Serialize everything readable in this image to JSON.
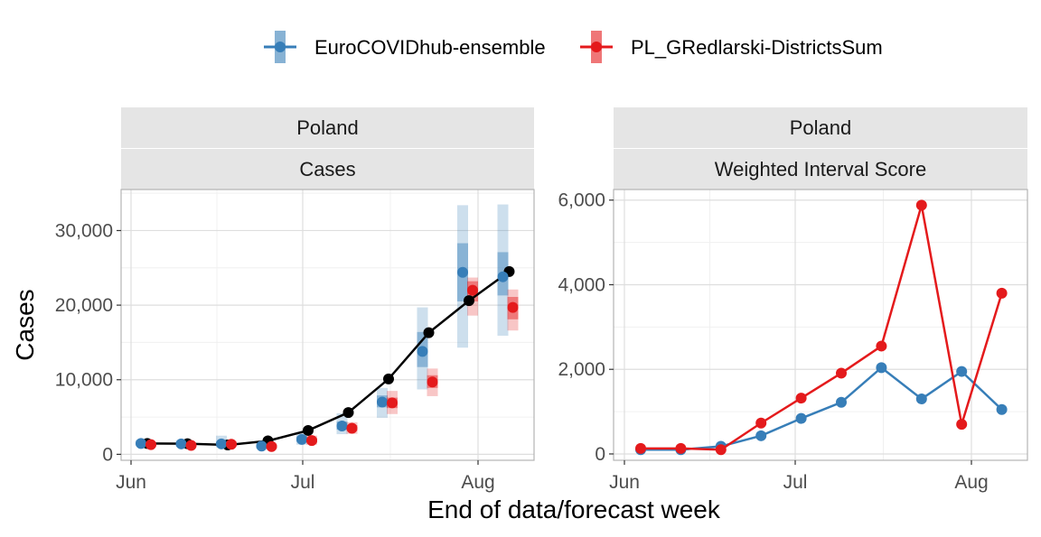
{
  "chart_data": [
    {
      "type": "line",
      "strip_top": "Poland",
      "strip_bottom": "Cases",
      "ylabel": "Cases",
      "xlabel": "End of data/forecast week",
      "x_ticks": [
        "Jun",
        "Jul",
        "Aug"
      ],
      "y_ticks": [
        "0",
        "10,000",
        "20,000",
        "30,000"
      ],
      "y_tick_values": [
        0,
        10000,
        20000,
        30000
      ],
      "ylim": [
        -800,
        35500
      ],
      "grid": true,
      "observed": {
        "color": "#000000",
        "values": [
          1450,
          1420,
          1250,
          1800,
          3200,
          5600,
          10100,
          16300,
          20600,
          24500
        ]
      },
      "forecasts": [
        {
          "model": "EuroCOVIDhub-ensemble",
          "color": "#377eb8",
          "points": [
            {
              "median": 1450,
              "inner": [
                1300,
                1650
              ],
              "outer": [
                1100,
                1900
              ]
            },
            {
              "median": 1400,
              "inner": [
                1250,
                1600
              ],
              "outer": [
                1050,
                1850
              ]
            },
            {
              "median": 1400,
              "inner": [
                1200,
                1700
              ],
              "outer": [
                950,
                2500
              ]
            },
            {
              "median": 1100,
              "inner": [
                950,
                1300
              ],
              "outer": [
                800,
                1600
              ]
            },
            {
              "median": 2000,
              "inner": [
                1700,
                2400
              ],
              "outer": [
                1300,
                3000
              ]
            },
            {
              "median": 3800,
              "inner": [
                3300,
                4400
              ],
              "outer": [
                2700,
                5500
              ]
            },
            {
              "median": 7000,
              "inner": [
                6300,
                7900
              ],
              "outer": [
                4900,
                8900
              ]
            },
            {
              "median": 13800,
              "inner": [
                11700,
                16400
              ],
              "outer": [
                8700,
                19700
              ]
            },
            {
              "median": 24400,
              "inner": [
                20500,
                28300
              ],
              "outer": [
                14300,
                33400
              ]
            },
            {
              "median": 23800,
              "inner": [
                21300,
                27100
              ],
              "outer": [
                15900,
                33500
              ]
            }
          ]
        },
        {
          "model": "PL_GRedlarski-DistrictsSum",
          "color": "#e41a1c",
          "points": [
            {
              "median": 1300,
              "inner": [
                1200,
                1450
              ],
              "outer": [
                1050,
                1650
              ]
            },
            {
              "median": 1200,
              "inner": [
                1100,
                1350
              ],
              "outer": [
                950,
                1550
              ]
            },
            {
              "median": 1350,
              "inner": [
                1200,
                1500
              ],
              "outer": [
                1050,
                1750
              ]
            },
            {
              "median": 1050,
              "inner": [
                900,
                1250
              ],
              "outer": [
                750,
                1450
              ]
            },
            {
              "median": 1850,
              "inner": [
                1600,
                2150
              ],
              "outer": [
                1300,
                2500
              ]
            },
            {
              "median": 3500,
              "inner": [
                3150,
                3900
              ],
              "outer": [
                2750,
                4300
              ]
            },
            {
              "median": 6900,
              "inner": [
                6200,
                7600
              ],
              "outer": [
                5400,
                8500
              ]
            },
            {
              "median": 9700,
              "inner": [
                8900,
                10600
              ],
              "outer": [
                7800,
                11500
              ]
            },
            {
              "median": 22000,
              "inner": [
                20500,
                23200
              ],
              "outer": [
                18600,
                23700
              ]
            },
            {
              "median": 19700,
              "inner": [
                18100,
                21100
              ],
              "outer": [
                16600,
                22100
              ]
            }
          ]
        }
      ]
    },
    {
      "type": "line",
      "strip_top": "Poland",
      "strip_bottom": "Weighted Interval Score",
      "x_ticks": [
        "Jun",
        "Jul",
        "Aug"
      ],
      "y_ticks": [
        "0",
        "2,000",
        "4,000",
        "6,000"
      ],
      "y_tick_values": [
        0,
        2000,
        4000,
        6000
      ],
      "ylim": [
        -150,
        6250
      ],
      "grid": true,
      "series": [
        {
          "name": "EuroCOVIDhub-ensemble",
          "color": "#377eb8",
          "values": [
            100,
            100,
            180,
            430,
            840,
            1220,
            2040,
            1300,
            1950,
            1050
          ]
        },
        {
          "name": "PL_GRedlarski-DistrictsSum",
          "color": "#e41a1c",
          "values": [
            130,
            130,
            100,
            730,
            1320,
            1910,
            2550,
            5880,
            700,
            3800
          ]
        }
      ]
    }
  ],
  "legend": {
    "position": "top",
    "items": [
      {
        "label": "EuroCOVIDhub-ensemble",
        "color": "#377eb8"
      },
      {
        "label": "PL_GRedlarski-DistrictsSum",
        "color": "#e41a1c"
      }
    ]
  }
}
